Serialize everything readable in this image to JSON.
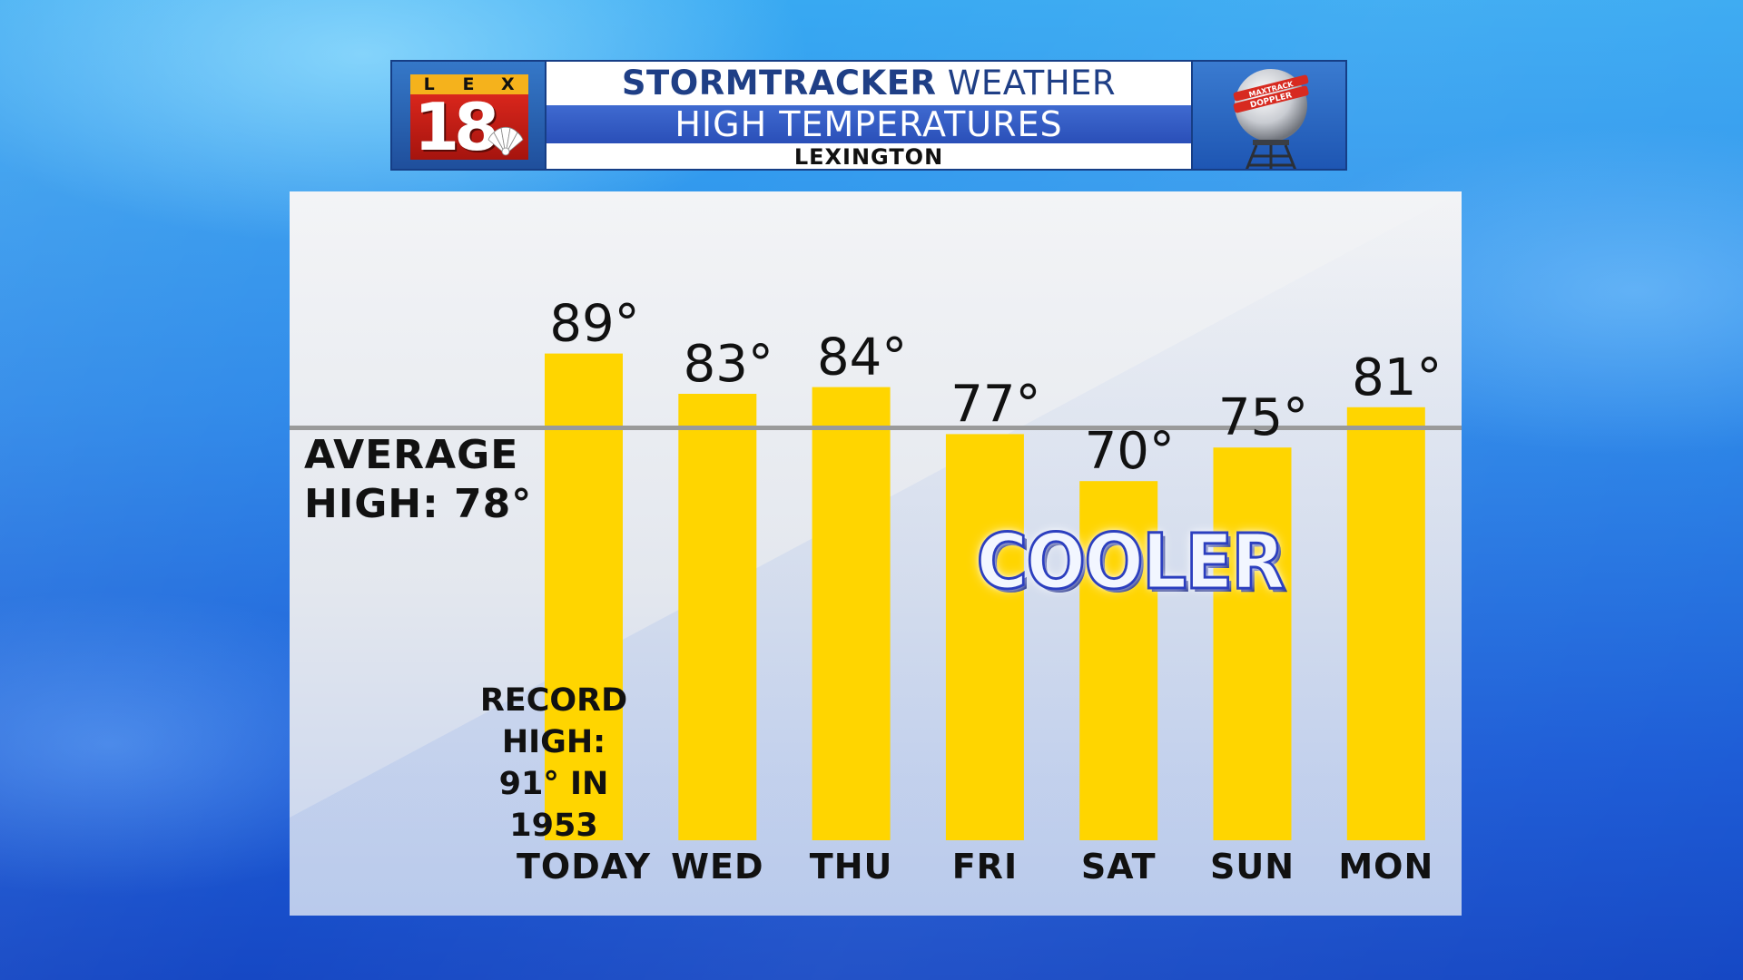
{
  "header": {
    "logo_letters": [
      "L",
      "E",
      "X"
    ],
    "logo_number": "18",
    "title_bold": "STORMTRACKER",
    "title_rest": " WEATHER",
    "subtitle": "HIGH TEMPERATURES",
    "location": "LEXINGTON",
    "radar_label_top": "MAXTRACK",
    "radar_label_bottom": "DOPPLER"
  },
  "annotations": {
    "average_line1": "AVERAGE",
    "average_line2": "HIGH: 78°",
    "record_lines": [
      "RECORD",
      "HIGH:",
      "91° IN",
      "1953"
    ],
    "cooler": "COOLER"
  },
  "colors": {
    "bar": "#ffd500",
    "average_line": "#9a9a9a",
    "header_blue": "#1f3f86",
    "logo_red": "#d9261c",
    "logo_gold": "#f5b21c"
  },
  "chart_data": {
    "type": "bar",
    "title": "HIGH TEMPERATURES",
    "categories": [
      "TODAY",
      "WED",
      "THU",
      "FRI",
      "SAT",
      "SUN",
      "MON"
    ],
    "values": [
      89,
      83,
      84,
      77,
      70,
      75,
      81
    ],
    "value_labels": [
      "89°",
      "83°",
      "84°",
      "77°",
      "70°",
      "75°",
      "81°"
    ],
    "reference_line": {
      "value": 78
    },
    "record": {
      "value": 91,
      "year": 1953
    },
    "grid": false
  }
}
